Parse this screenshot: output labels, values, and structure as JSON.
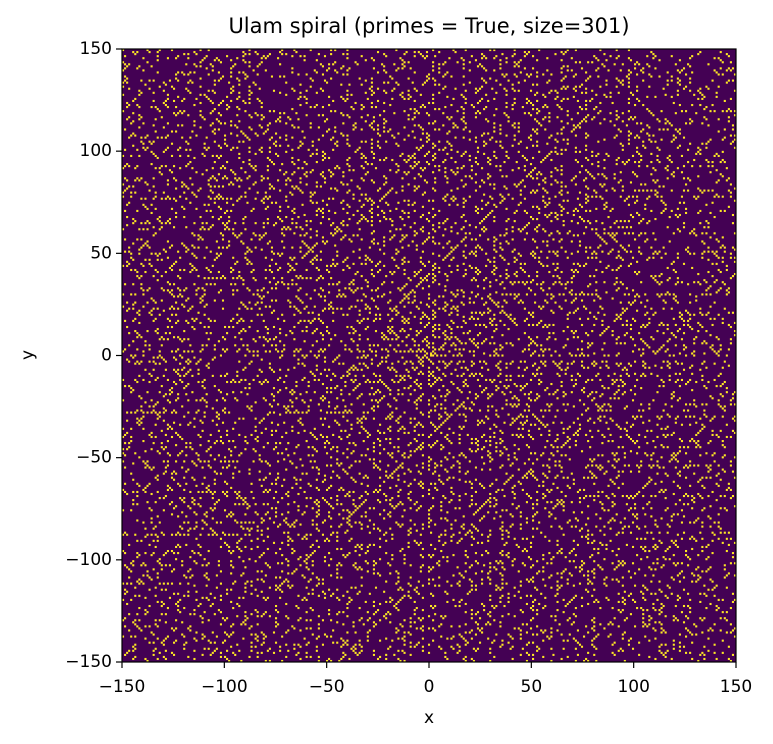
{
  "chart_data": {
    "type": "ulam",
    "title": "Ulam spiral (primes = True, size=301)",
    "xlabel": "x",
    "ylabel": "y",
    "xlim": [
      -150,
      150
    ],
    "ylim": [
      -150,
      150
    ],
    "xticks": [
      {
        "value": -150,
        "label": "−150"
      },
      {
        "value": -100,
        "label": "−100"
      },
      {
        "value": -50,
        "label": "−50"
      },
      0,
      50,
      100,
      150
    ],
    "yticks": [
      {
        "value": -150,
        "label": "−150"
      },
      {
        "value": -100,
        "label": "−100"
      },
      {
        "value": -50,
        "label": "−50"
      },
      0,
      50,
      100,
      150
    ],
    "colors": [
      "#440154",
      "#fde725"
    ]
  }
}
